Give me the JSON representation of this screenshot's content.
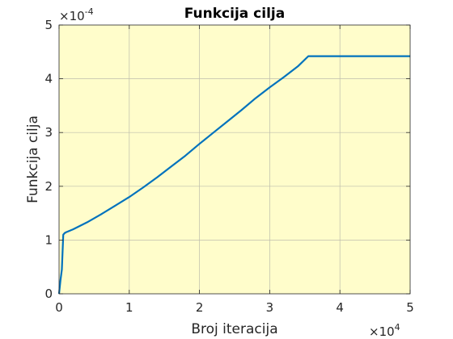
{
  "chart_data": {
    "type": "line",
    "title": "Funkcija cilja",
    "xlabel": "Broj iteracija",
    "ylabel": "Funkcija cilja",
    "x_multiplier": {
      "base": "×10",
      "exp": "4"
    },
    "y_multiplier": {
      "base": "×10",
      "exp": "-4"
    },
    "xlim": [
      0,
      50000
    ],
    "ylim": [
      0,
      0.0005
    ],
    "xticks": [
      0,
      10000,
      20000,
      30000,
      40000,
      50000
    ],
    "xtick_labels": [
      "0",
      "1",
      "2",
      "3",
      "4",
      "5"
    ],
    "yticks": [
      0,
      0.0001,
      0.0002,
      0.0003,
      0.0004,
      0.0005
    ],
    "ytick_labels": [
      "0",
      "1",
      "2",
      "3",
      "4",
      "5"
    ],
    "grid": true,
    "background_color": "#FFFDCB",
    "series": [
      {
        "color": "#0072BD",
        "x": [
          0,
          200,
          400,
          600,
          800,
          1000,
          2000,
          4000,
          6000,
          8000,
          10000,
          12000,
          14000,
          16000,
          18000,
          20000,
          22000,
          24000,
          26000,
          28000,
          30000,
          32000,
          34000,
          35500,
          37000,
          40000,
          45000,
          50000
        ],
        "y": [
          0.0,
          2.5e-05,
          4.5e-05,
          0.00011,
          0.000113,
          0.0001145,
          0.00012,
          0.000133,
          0.000148,
          0.000164,
          0.00018,
          0.000198,
          0.000217,
          0.000237,
          0.000257,
          0.000279,
          0.0003,
          0.000321,
          0.000342,
          0.000364,
          0.000384,
          0.000403,
          0.000423,
          0.000442,
          0.000442,
          0.000442,
          0.000442,
          0.000442
        ]
      }
    ]
  }
}
